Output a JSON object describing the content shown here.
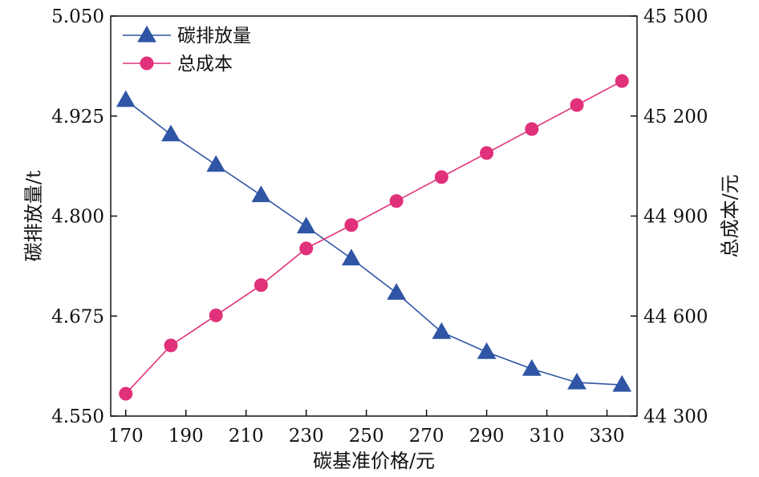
{
  "chart_data": {
    "type": "line",
    "xlabel": "碳基准价格/元",
    "ylabel_left": "碳排放量/t",
    "ylabel_right": "总成本/元",
    "x_ticks": [
      "170",
      "190",
      "210",
      "230",
      "250",
      "270",
      "290",
      "310",
      "330"
    ],
    "x_tick_values": [
      170,
      190,
      210,
      230,
      250,
      270,
      290,
      310,
      330
    ],
    "xlim": [
      165,
      340
    ],
    "y_left_ticks": [
      "4.550",
      "4.675",
      "4.800",
      "4.925",
      "5.050"
    ],
    "y_left_tick_values": [
      4.55,
      4.675,
      4.8,
      4.925,
      5.05
    ],
    "ylim_left": [
      4.55,
      5.05
    ],
    "y_right_ticks": [
      "44 300",
      "44 600",
      "44 900",
      "45 200",
      "45 500"
    ],
    "y_right_tick_values": [
      44300,
      44600,
      44900,
      45200,
      45500
    ],
    "ylim_right": [
      44300,
      45500
    ],
    "grid": false,
    "legend_position": "top-left",
    "x": [
      170,
      185,
      200,
      215,
      230,
      245,
      260,
      275,
      290,
      305,
      320,
      335
    ],
    "series": [
      {
        "name": "碳排放量",
        "axis": "left",
        "marker": "triangle",
        "color": "#2f55a4",
        "values": [
          4.945,
          4.902,
          4.864,
          4.826,
          4.787,
          4.747,
          4.704,
          4.655,
          4.63,
          4.609,
          4.592,
          4.589
        ]
      },
      {
        "name": "总成本",
        "axis": "right",
        "marker": "circle",
        "color": "#e0317a",
        "values": [
          44367,
          44512,
          44602,
          44693,
          44803,
          44873,
          44945,
          45017,
          45089,
          45161,
          45233,
          45305
        ]
      }
    ]
  }
}
